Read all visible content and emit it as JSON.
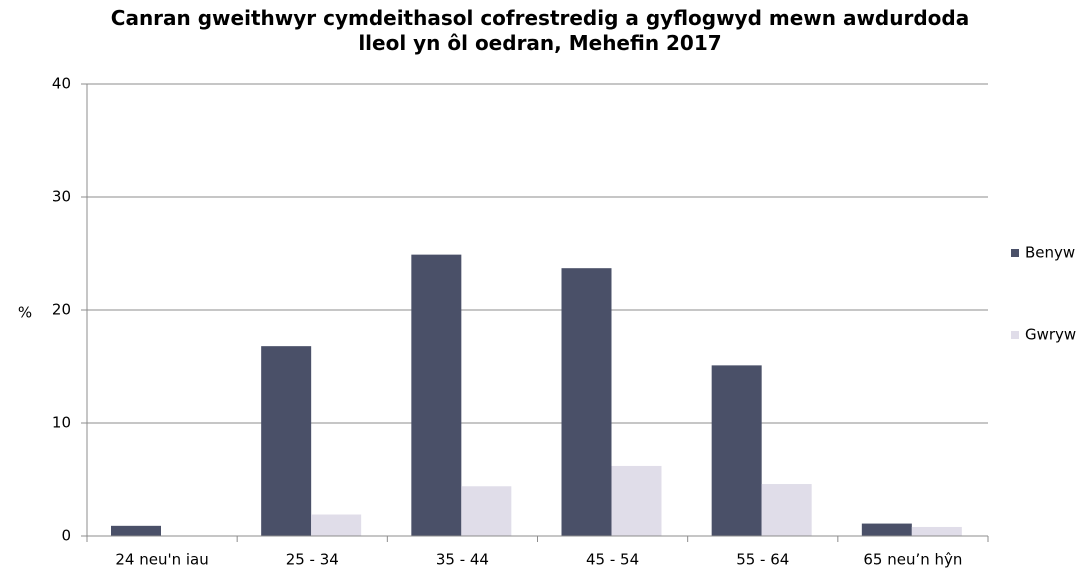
{
  "chart_data": {
    "type": "bar",
    "title": "Canran gweithwyr cymdeithasol cofrestredig a gyflogwyd mewn awdurdoda lleol yn ôl oedran, Mehefin 2017",
    "y_label": "%",
    "categories": [
      "24 neu'n iau",
      "25 - 34",
      "35 - 44",
      "45 - 54",
      "55 - 64",
      "65 neu’n hŷn"
    ],
    "series": [
      {
        "name": "Benyw",
        "color": "#4a5068",
        "values": [
          0.9,
          16.8,
          24.9,
          23.7,
          15.1,
          1.1
        ]
      },
      {
        "name": "Gwryw",
        "color": "#e0dde9",
        "values": [
          0,
          1.9,
          4.4,
          6.2,
          4.6,
          0.8
        ]
      }
    ],
    "ylim": [
      0,
      40
    ],
    "yticks": [
      0,
      10,
      20,
      30,
      40
    ],
    "grid": true,
    "legend": "right"
  }
}
